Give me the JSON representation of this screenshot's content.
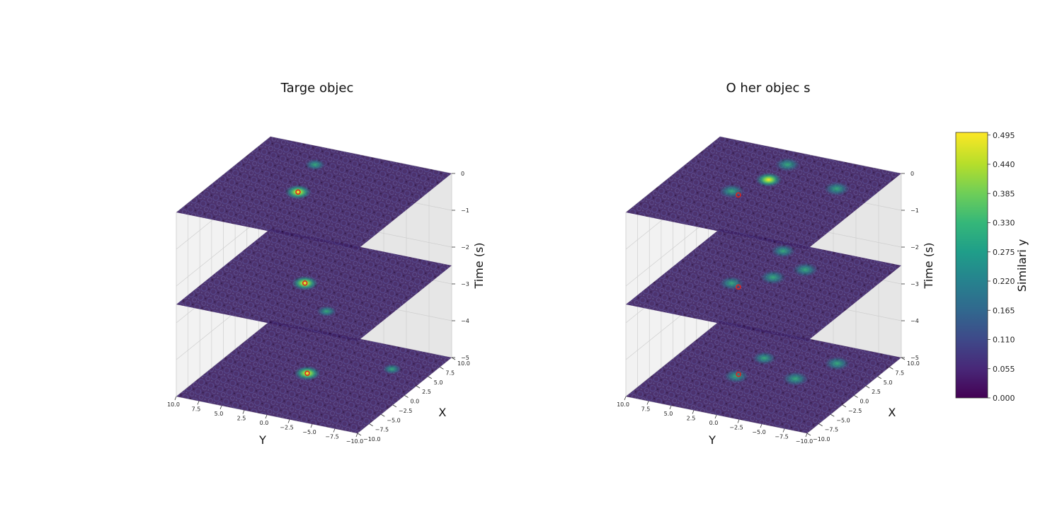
{
  "figure": {
    "colorbar": {
      "label": "Similari y",
      "ticks": [
        "0.000",
        "0.055",
        "0.110",
        "0.165",
        "0.220",
        "0.275",
        "0.330",
        "0.385",
        "0.440",
        "0.495"
      ],
      "range": [
        0.0,
        0.5
      ],
      "colormap": "viridis"
    }
  },
  "chart_data": [
    {
      "type": "heatmap",
      "subtype": "3d-stacked-slices",
      "title": "Targe  objec",
      "xlabel": "X",
      "ylabel": "Y",
      "zlabel": "Time (s)",
      "xlim": [
        -10,
        10
      ],
      "ylim": [
        -10,
        10
      ],
      "zlim": [
        -5,
        0
      ],
      "x_ticks": [
        "−10.0",
        "−7.5",
        "−5.0",
        "−2.5",
        "0.0",
        "2.5",
        "5.0",
        "7.5",
        "10.0"
      ],
      "y_ticks": [
        "10.0",
        "7.5",
        "5.0",
        "2.5",
        "0.0",
        "−2.5",
        "−5.0",
        "−7.5",
        "−10.0"
      ],
      "z_ticks": [
        "0",
        "−1",
        "−2",
        "−3",
        "−4",
        "−5"
      ],
      "slice_times": [
        0,
        -2.5,
        -5
      ],
      "markers": [
        {
          "time": 0,
          "x": -0.5,
          "y": 1.5
        },
        {
          "time": -2.5,
          "x": 0,
          "y": 1
        },
        {
          "time": -5,
          "x": 0.5,
          "y": 1
        }
      ],
      "hotspots": [
        [
          {
            "x": -0.5,
            "y": 1.5,
            "v": 0.49
          },
          {
            "x": 6,
            "y": 3,
            "v": 0.3
          }
        ],
        [
          {
            "x": 0,
            "y": 1,
            "v": 0.49
          },
          {
            "x": -5,
            "y": -4,
            "v": 0.28
          }
        ],
        [
          {
            "x": 0.5,
            "y": 1,
            "v": 0.49
          },
          {
            "x": 5,
            "y": -6,
            "v": 0.25
          }
        ]
      ],
      "grid": true
    },
    {
      "type": "heatmap",
      "subtype": "3d-stacked-slices",
      "title": "O her objec s",
      "xlabel": "X",
      "ylabel": "Y",
      "zlabel": "Time (s)",
      "xlim": [
        -10,
        10
      ],
      "ylim": [
        -10,
        10
      ],
      "zlim": [
        -5,
        0
      ],
      "x_ticks": [
        "−10.0",
        "−7.5",
        "−5.0",
        "−2.5",
        "0.0",
        "2.5",
        "5.0",
        "7.5",
        "10.0"
      ],
      "y_ticks": [
        "10.0",
        "7.5",
        "5.0",
        "2.5",
        "0.0",
        "−2.5",
        "−5.0",
        "−7.5",
        "−10.0"
      ],
      "z_ticks": [
        "0",
        "−1",
        "−2",
        "−3",
        "−4",
        "−5"
      ],
      "slice_times": [
        0,
        -2.5,
        -5
      ],
      "markers": [
        {
          "time": 0,
          "x": -1.5,
          "y": 2
        },
        {
          "time": -2.5,
          "x": -1.5,
          "y": 2
        },
        {
          "time": -5,
          "x": -0.5,
          "y": 2.5
        }
      ],
      "hotspots": [
        [
          {
            "x": -1,
            "y": 3,
            "v": 0.45
          },
          {
            "x": 3,
            "y": 1,
            "v": 0.48
          },
          {
            "x": 4,
            "y": -6,
            "v": 0.46
          },
          {
            "x": 7,
            "y": 1,
            "v": 0.44
          }
        ],
        [
          {
            "x": -1,
            "y": 3,
            "v": 0.43
          },
          {
            "x": 2,
            "y": 0,
            "v": 0.47
          },
          {
            "x": 5,
            "y": -2,
            "v": 0.46
          },
          {
            "x": 8,
            "y": 2,
            "v": 0.42
          }
        ],
        [
          {
            "x": -1,
            "y": 2.5,
            "v": 0.44
          },
          {
            "x": 1,
            "y": -3,
            "v": 0.47
          },
          {
            "x": 6,
            "y": -5,
            "v": 0.45
          },
          {
            "x": 4,
            "y": 2,
            "v": 0.4
          }
        ]
      ],
      "grid": true
    }
  ]
}
